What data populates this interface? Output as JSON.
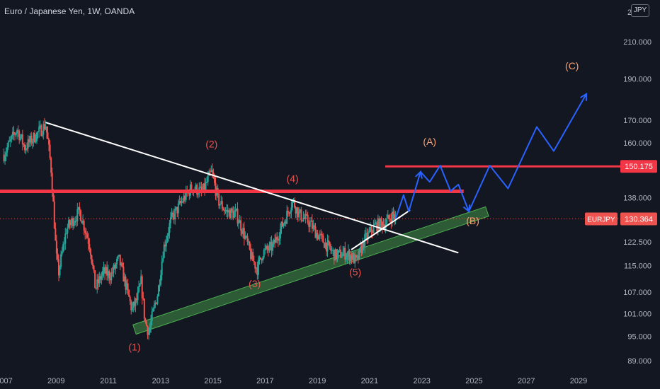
{
  "header": {
    "title": "Euro / Japanese Yen, 1W, OANDA",
    "currency": "JPY"
  },
  "colors": {
    "background": "#131722",
    "bull": "#26a69a",
    "bear": "#ef5350",
    "resistance": "#f23645",
    "trendline": "#ffffff",
    "projection": "#2962ff",
    "channel": "#4caf50",
    "wave_label": "#ef5350",
    "abc_label": "#f7a072"
  },
  "chart_data": {
    "type": "candlestick",
    "symbol": "EURJPY",
    "yscale": "log",
    "ylim": [
      86,
      235
    ],
    "xlim": [
      2006.85,
      2030.6
    ],
    "x_ticks": [
      "2007",
      "2009",
      "2011",
      "2013",
      "2015",
      "2017",
      "2019",
      "2021",
      "2023",
      "2025",
      "2027",
      "2029"
    ],
    "y_ticks": [
      "210.000",
      "190.000",
      "170.000",
      "160.000",
      "138.000",
      "122.500",
      "115.000",
      "107.000",
      "101.000",
      "95.000",
      "89.000"
    ],
    "y_tick_partial_top": "2",
    "current_price": {
      "symbol_label": "EURJPY",
      "value": "130.364"
    },
    "level_label": {
      "value": "150.175"
    },
    "price_path": [
      [
        2007.0,
        155
      ],
      [
        2007.5,
        166
      ],
      [
        2007.8,
        158
      ],
      [
        2008.2,
        163
      ],
      [
        2008.6,
        168
      ],
      [
        2008.8,
        150
      ],
      [
        2009.0,
        118
      ],
      [
        2009.1,
        113
      ],
      [
        2009.4,
        127
      ],
      [
        2009.9,
        133
      ],
      [
        2010.3,
        121
      ],
      [
        2010.5,
        108
      ],
      [
        2010.8,
        113
      ],
      [
        2011.1,
        112
      ],
      [
        2011.4,
        117
      ],
      [
        2011.7,
        108
      ],
      [
        2011.9,
        102
      ],
      [
        2012.1,
        105
      ],
      [
        2012.25,
        110
      ],
      [
        2012.4,
        99
      ],
      [
        2012.55,
        96
      ],
      [
        2012.7,
        101
      ],
      [
        2012.9,
        107
      ],
      [
        2013.1,
        120
      ],
      [
        2013.4,
        130
      ],
      [
        2013.9,
        138
      ],
      [
        2014.2,
        142
      ],
      [
        2014.6,
        140
      ],
      [
        2014.95,
        148
      ],
      [
        2015.2,
        137
      ],
      [
        2015.5,
        133
      ],
      [
        2015.9,
        132
      ],
      [
        2016.2,
        125
      ],
      [
        2016.5,
        117
      ],
      [
        2016.7,
        114
      ],
      [
        2016.9,
        119
      ],
      [
        2017.3,
        121
      ],
      [
        2017.8,
        131
      ],
      [
        2018.05,
        137
      ],
      [
        2018.3,
        132
      ],
      [
        2018.7,
        129
      ],
      [
        2019.0,
        125
      ],
      [
        2019.3,
        122
      ],
      [
        2019.7,
        118
      ],
      [
        2020.0,
        119
      ],
      [
        2020.3,
        118
      ],
      [
        2020.5,
        116
      ],
      [
        2020.8,
        123
      ],
      [
        2021.2,
        128
      ],
      [
        2021.6,
        129
      ],
      [
        2021.9,
        132
      ],
      [
        2022.0,
        130.4
      ]
    ],
    "wave_labels": [
      {
        "text": "(1)",
        "x": 2012.0,
        "y": 91.5
      },
      {
        "text": "(2)",
        "x": 2014.95,
        "y": 158
      },
      {
        "text": "(3)",
        "x": 2016.6,
        "y": 108.5
      },
      {
        "text": "(4)",
        "x": 2018.05,
        "y": 144
      },
      {
        "text": "(5)",
        "x": 2020.45,
        "y": 112
      }
    ],
    "abc_labels": [
      {
        "text": "(A)",
        "x": 2023.3,
        "y": 159
      },
      {
        "text": "(B)",
        "x": 2024.95,
        "y": 128.5
      },
      {
        "text": "(C)",
        "x": 2028.75,
        "y": 195
      }
    ],
    "resistance_lines": [
      {
        "x1": 2006.85,
        "x2": 2024.6,
        "y": 140.4
      },
      {
        "x1": 2021.6,
        "x2": 2030.6,
        "y": 150.175
      }
    ],
    "trend_lines": [
      {
        "x1": 2008.6,
        "y1": 169,
        "x2": 2024.4,
        "y2": 119
      },
      {
        "x1": 2020.3,
        "y1": 120,
        "x2": 2022.55,
        "y2": 133.5
      }
    ],
    "channel": {
      "x1": 2012.0,
      "y1": 96.8,
      "x2": 2025.5,
      "y2": 133
    },
    "projection_path": [
      [
        2022.0,
        130.5
      ],
      [
        2022.3,
        139
      ],
      [
        2022.5,
        133
      ],
      [
        2022.95,
        148
      ],
      [
        2023.3,
        144
      ],
      [
        2023.7,
        150.5
      ],
      [
        2024.1,
        140.5
      ],
      [
        2024.4,
        143
      ],
      [
        2024.8,
        133
      ],
      [
        2025.6,
        150.5
      ],
      [
        2026.3,
        141.5
      ],
      [
        2027.4,
        167
      ],
      [
        2028.05,
        156.5
      ],
      [
        2029.3,
        182.5
      ]
    ]
  }
}
